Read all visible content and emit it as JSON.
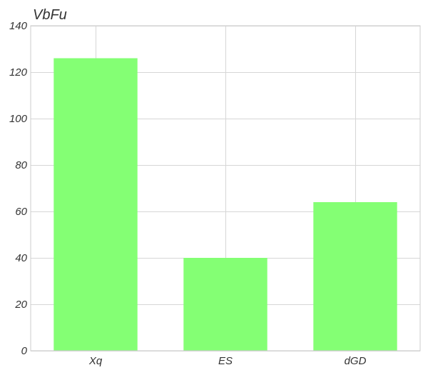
{
  "chart_data": {
    "type": "bar",
    "title": "VbFu",
    "xlabel": "",
    "ylabel": "",
    "categories": [
      "Xq",
      "ES",
      "dGD"
    ],
    "values": [
      126,
      40,
      64
    ],
    "ylim": [
      0,
      140
    ],
    "yticks": [
      0,
      20,
      40,
      60,
      80,
      100,
      120,
      140
    ],
    "grid": true,
    "legend": "none",
    "bar_color": "#84ff74",
    "grid_color": "#d6d6d6",
    "frame_color": "#cccccc",
    "text_color": "#333333"
  }
}
